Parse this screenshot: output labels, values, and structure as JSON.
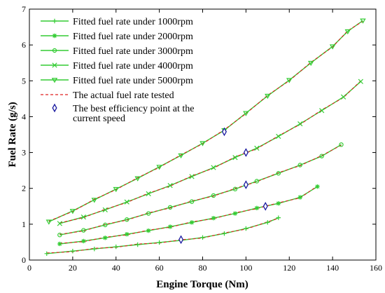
{
  "chart_data": {
    "type": "line",
    "title": "",
    "xlabel": "Engine Torque  (Nm)",
    "ylabel": "Fuel Rate (g/s)",
    "xlim": [
      0,
      160
    ],
    "ylim": [
      0,
      7
    ],
    "xticks": [
      0,
      20,
      40,
      60,
      80,
      100,
      120,
      140,
      160
    ],
    "yticks": [
      0,
      1,
      2,
      3,
      4,
      5,
      6,
      7
    ],
    "grid": false,
    "legend_position": "top-left",
    "series": [
      {
        "name": "Fitted fuel rate under 1000rpm",
        "marker": "plus",
        "color": "#33cc33",
        "x": [
          8,
          20,
          30,
          40,
          50,
          60,
          70,
          80,
          90,
          100,
          110,
          115
        ],
        "y": [
          0.18,
          0.25,
          0.31,
          0.37,
          0.43,
          0.49,
          0.55,
          0.63,
          0.74,
          0.88,
          1.05,
          1.18
        ]
      },
      {
        "name": "Fitted fuel rate under 2000rpm",
        "marker": "asterisk",
        "color": "#33cc33",
        "x": [
          14,
          25,
          35,
          45,
          55,
          65,
          75,
          85,
          95,
          105,
          115,
          125,
          133
        ],
        "y": [
          0.45,
          0.53,
          0.62,
          0.72,
          0.82,
          0.93,
          1.05,
          1.17,
          1.3,
          1.45,
          1.58,
          1.75,
          2.05
        ]
      },
      {
        "name": "Fitted fuel rate under 3000rpm",
        "marker": "circle",
        "color": "#33cc33",
        "x": [
          14,
          25,
          35,
          45,
          55,
          65,
          75,
          85,
          95,
          105,
          115,
          125,
          135,
          144
        ],
        "y": [
          0.7,
          0.83,
          0.98,
          1.13,
          1.3,
          1.47,
          1.63,
          1.8,
          1.98,
          2.2,
          2.42,
          2.65,
          2.9,
          3.22
        ]
      },
      {
        "name": "Fitted fuel rate under 4000rpm",
        "marker": "x",
        "color": "#33cc33",
        "x": [
          14,
          25,
          35,
          45,
          55,
          65,
          75,
          85,
          95,
          105,
          115,
          125,
          135,
          145,
          153
        ],
        "y": [
          1.02,
          1.2,
          1.4,
          1.62,
          1.85,
          2.08,
          2.33,
          2.58,
          2.86,
          3.12,
          3.45,
          3.8,
          4.17,
          4.55,
          4.98
        ]
      },
      {
        "name": "Fitted fuel rate under 5000rpm",
        "marker": "triangle-down",
        "color": "#33cc33",
        "x": [
          9,
          20,
          30,
          40,
          50,
          60,
          70,
          80,
          90,
          100,
          110,
          120,
          130,
          140,
          147,
          154
        ],
        "y": [
          1.07,
          1.37,
          1.68,
          1.98,
          2.28,
          2.6,
          2.92,
          3.26,
          3.62,
          4.1,
          4.58,
          5.02,
          5.5,
          5.96,
          6.38,
          6.68
        ]
      }
    ],
    "actual_series": {
      "name": "The actual fuel rate tested",
      "style": "dashed",
      "color": "#e02020"
    },
    "best_efficiency": {
      "name": "The best efficiency point at the current speed",
      "marker": "diamond",
      "color": "#1a1aa0",
      "points": [
        {
          "x": 70,
          "y": 0.57
        },
        {
          "x": 109,
          "y": 1.5
        },
        {
          "x": 100,
          "y": 2.1
        },
        {
          "x": 100,
          "y": 3.0
        },
        {
          "x": 90,
          "y": 3.58
        }
      ]
    },
    "legend": {
      "entries": [
        "Fitted fuel rate under 1000rpm",
        "Fitted fuel rate under 2000rpm",
        "Fitted fuel rate under 3000rpm",
        "Fitted fuel rate under 4000rpm",
        "Fitted fuel rate under 5000rpm",
        "The actual fuel rate tested",
        "The best efficiency point at the"
      ],
      "wrap_text": "current speed"
    }
  }
}
